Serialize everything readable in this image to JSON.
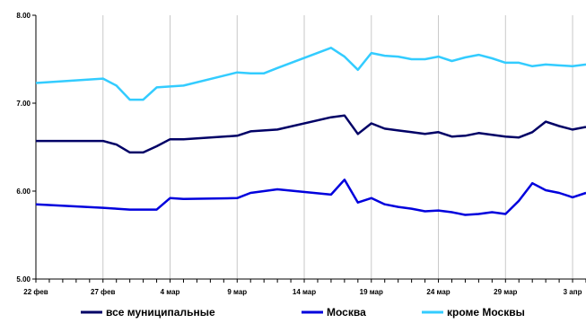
{
  "chart_data": {
    "type": "line",
    "title": "",
    "xlabel": "",
    "ylabel": "",
    "ylim": [
      5.0,
      8.0
    ],
    "yticks": [
      "5.00",
      "6.00",
      "7.00",
      "8.00"
    ],
    "xticks": [
      "22 фев",
      "27 фев",
      "4 мар",
      "9 мар",
      "14 мар",
      "19 мар",
      "24 мар",
      "29 мар",
      "3 апр"
    ],
    "grid": "vertical",
    "legend_position": "bottom",
    "series": [
      {
        "name": "все муниципальные",
        "color": "#000066",
        "x": [
          0,
          5,
          6,
          7,
          8,
          9,
          10,
          11,
          15,
          16,
          17,
          18,
          22,
          23,
          24,
          25,
          26,
          27,
          28,
          29,
          30,
          31,
          32,
          33,
          34,
          35,
          36,
          37,
          38,
          39,
          40,
          41
        ],
        "y": [
          6.57,
          6.57,
          6.53,
          6.44,
          6.44,
          6.51,
          6.59,
          6.59,
          6.63,
          6.68,
          6.69,
          6.7,
          6.84,
          6.86,
          6.65,
          6.77,
          6.71,
          6.69,
          6.67,
          6.65,
          6.67,
          6.62,
          6.63,
          6.66,
          6.64,
          6.62,
          6.61,
          6.67,
          6.79,
          6.74,
          6.7,
          6.73
        ]
      },
      {
        "name": "Москва",
        "color": "#0000dd",
        "x": [
          0,
          5,
          6,
          7,
          8,
          9,
          10,
          11,
          15,
          16,
          17,
          18,
          22,
          23,
          24,
          25,
          26,
          27,
          28,
          29,
          30,
          31,
          32,
          33,
          34,
          35,
          36,
          37,
          38,
          39,
          40,
          41
        ],
        "y": [
          5.85,
          5.81,
          5.8,
          5.79,
          5.79,
          5.79,
          5.92,
          5.91,
          5.92,
          5.98,
          6.0,
          6.02,
          5.96,
          6.13,
          5.87,
          5.92,
          5.85,
          5.82,
          5.8,
          5.77,
          5.78,
          5.76,
          5.73,
          5.74,
          5.76,
          5.74,
          5.89,
          6.09,
          6.01,
          5.98,
          5.93,
          5.98
        ]
      },
      {
        "name": "кроме Москвы",
        "color": "#33ccff",
        "x": [
          0,
          5,
          6,
          7,
          8,
          9,
          10,
          11,
          15,
          16,
          17,
          18,
          22,
          23,
          24,
          25,
          26,
          27,
          28,
          29,
          30,
          31,
          32,
          33,
          34,
          35,
          36,
          37,
          38,
          39,
          40,
          41
        ],
        "y": [
          7.23,
          7.28,
          7.2,
          7.04,
          7.04,
          7.18,
          7.19,
          7.2,
          7.35,
          7.34,
          7.34,
          7.4,
          7.63,
          7.53,
          7.38,
          7.57,
          7.54,
          7.53,
          7.5,
          7.5,
          7.53,
          7.48,
          7.52,
          7.55,
          7.51,
          7.46,
          7.46,
          7.42,
          7.44,
          7.43,
          7.42,
          7.44
        ]
      }
    ]
  }
}
